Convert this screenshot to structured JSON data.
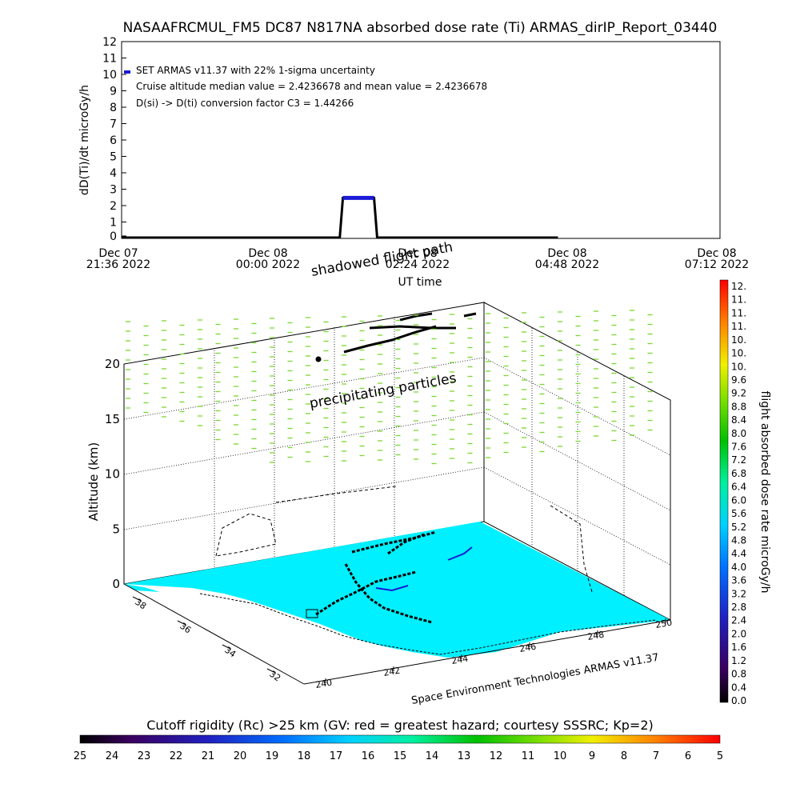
{
  "title": "NASAAFRCMUL_FM5 DC87 N817NA absorbed dose rate (Ti) ARMAS_dirIP_Report_03440",
  "top_chart": {
    "ylabel": "dD(Ti)/dt microGy/h",
    "xlabel": "UT time",
    "yticks": [
      0,
      1,
      2,
      3,
      4,
      5,
      6,
      7,
      8,
      9,
      10,
      11,
      12
    ],
    "xticks": [
      {
        "day": "Dec 07",
        "time": "21:36 2022"
      },
      {
        "day": "Dec 08",
        "time": "00:00 2022"
      },
      {
        "day": "Dec 08",
        "time": "02:24 2022"
      },
      {
        "day": "Dec 08",
        "time": "04:48 2022"
      },
      {
        "day": "Dec 08",
        "time": "07:12 2022"
      }
    ],
    "legend": [
      "SET ARMAS v11.37 with 22% 1-sigma uncertainty",
      "Cruise altitude median value = 2.4236678 and mean value = 2.4236678",
      "D(si) -> D(ti) conversion factor C3 = 1.44266"
    ],
    "series_color": "#1a1ad6"
  },
  "chart_data": [
    {
      "type": "line",
      "title": "NASAAFRCMUL_FM5 DC87 N817NA absorbed dose rate (Ti) ARMAS_dirIP_Report_03440",
      "xlabel": "UT time",
      "ylabel": "dD(Ti)/dt microGy/h",
      "x_unit": "hours after Dec 07 21:36 2022",
      "xlim": [
        0,
        9.6
      ],
      "ylim": [
        0,
        12
      ],
      "grid": false,
      "series": [
        {
          "name": "SET ARMAS v11.37 with 22% 1-sigma uncertainty",
          "x": [
            0,
            3.5,
            3.55,
            3.7,
            3.9,
            4.05,
            4.1,
            7.0
          ],
          "values": [
            0,
            0,
            2.42,
            2.42,
            2.42,
            2.42,
            0,
            0
          ]
        }
      ]
    },
    {
      "type": "scatter",
      "title": "",
      "xlabel": "",
      "ylabel": "Altitude (km)",
      "zlim": [
        0,
        20
      ],
      "zticks": [
        0,
        5,
        10,
        15,
        20
      ],
      "lat_ticks": [
        32,
        34,
        36,
        38
      ],
      "lon_ticks": [
        240,
        242,
        244,
        246,
        248,
        250
      ],
      "annotations": [
        "shadowed flight path",
        "precipitating particles"
      ],
      "footer": "Space Environment Technologies ARMAS v11.37"
    }
  ],
  "dose_colorbar": {
    "label": "flight absorbed dose rate microGy/h",
    "ticks": [
      "12.",
      "11.",
      "11.",
      "11.",
      "10.",
      "10.",
      "10.",
      "9.6",
      "9.2",
      "8.8",
      "8.4",
      "8.0",
      "7.6",
      "7.2",
      "6.8",
      "6.4",
      "6.0",
      "5.6",
      "5.2",
      "4.8",
      "4.4",
      "4.0",
      "3.6",
      "3.2",
      "2.8",
      "2.4",
      "2.0",
      "1.6",
      "1.2",
      "0.8",
      "0.4",
      "0.0"
    ]
  },
  "rigidity_colorbar": {
    "label": "Cutoff rigidity (Rc) >25 km (GV: red = greatest hazard; courtesy SSSRC; Kp=2)",
    "ticks": [
      "25",
      "24",
      "23",
      "22",
      "21",
      "20",
      "19",
      "18",
      "17",
      "16",
      "15",
      "14",
      "13",
      "12",
      "11",
      "10",
      "9",
      "8",
      "7",
      "6",
      "5"
    ]
  },
  "colors": {
    "terrain": "#00f0ff",
    "precip_ticks": "#7ad830",
    "flight_path": "#000000"
  }
}
